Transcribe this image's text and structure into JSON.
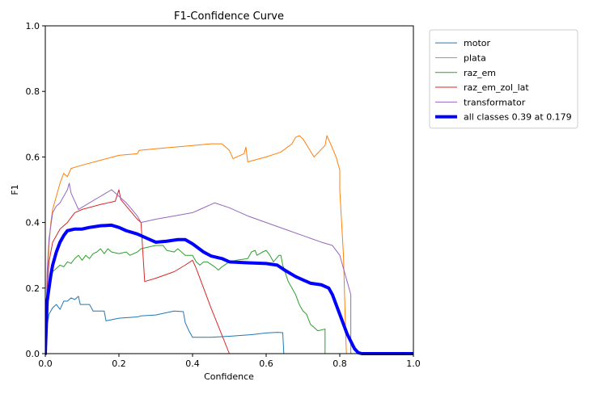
{
  "chart_data": {
    "type": "line",
    "title": "F1-Confidence Curve",
    "xlabel": "Confidence",
    "ylabel": "F1",
    "xlim": [
      0,
      1
    ],
    "ylim": [
      0,
      1
    ],
    "xticks": [
      "0.0",
      "0.2",
      "0.4",
      "0.6",
      "0.8",
      "1.0"
    ],
    "yticks": [
      "0.0",
      "0.2",
      "0.4",
      "0.6",
      "0.8",
      "1.0"
    ],
    "legend_position": "outside-top-right",
    "grid": false,
    "series": [
      {
        "name": "motor",
        "color": "#1f77b4",
        "width": 1,
        "points": [
          [
            0.0,
            0.0
          ],
          [
            0.004,
            0.08
          ],
          [
            0.01,
            0.12
          ],
          [
            0.02,
            0.14
          ],
          [
            0.03,
            0.15
          ],
          [
            0.04,
            0.135
          ],
          [
            0.05,
            0.16
          ],
          [
            0.06,
            0.16
          ],
          [
            0.07,
            0.17
          ],
          [
            0.08,
            0.165
          ],
          [
            0.09,
            0.175
          ],
          [
            0.095,
            0.15
          ],
          [
            0.12,
            0.15
          ],
          [
            0.13,
            0.13
          ],
          [
            0.16,
            0.13
          ],
          [
            0.165,
            0.1
          ],
          [
            0.2,
            0.108
          ],
          [
            0.25,
            0.112
          ],
          [
            0.26,
            0.115
          ],
          [
            0.3,
            0.118
          ],
          [
            0.35,
            0.13
          ],
          [
            0.375,
            0.128
          ],
          [
            0.38,
            0.095
          ],
          [
            0.39,
            0.07
          ],
          [
            0.4,
            0.05
          ],
          [
            0.45,
            0.05
          ],
          [
            0.5,
            0.053
          ],
          [
            0.56,
            0.058
          ],
          [
            0.6,
            0.063
          ],
          [
            0.63,
            0.065
          ],
          [
            0.645,
            0.064
          ],
          [
            0.648,
            0.0
          ]
        ]
      },
      {
        "name": "plata",
        "color": "#ff7f0e",
        "width": 1,
        "points": [
          [
            0.0,
            0.0
          ],
          [
            0.005,
            0.2
          ],
          [
            0.01,
            0.33
          ],
          [
            0.015,
            0.4
          ],
          [
            0.02,
            0.44
          ],
          [
            0.03,
            0.48
          ],
          [
            0.04,
            0.52
          ],
          [
            0.05,
            0.55
          ],
          [
            0.06,
            0.54
          ],
          [
            0.07,
            0.565
          ],
          [
            0.1,
            0.575
          ],
          [
            0.15,
            0.59
          ],
          [
            0.2,
            0.605
          ],
          [
            0.25,
            0.61
          ],
          [
            0.255,
            0.62
          ],
          [
            0.3,
            0.625
          ],
          [
            0.35,
            0.63
          ],
          [
            0.4,
            0.635
          ],
          [
            0.45,
            0.64
          ],
          [
            0.48,
            0.64
          ],
          [
            0.5,
            0.62
          ],
          [
            0.51,
            0.595
          ],
          [
            0.54,
            0.61
          ],
          [
            0.545,
            0.63
          ],
          [
            0.55,
            0.585
          ],
          [
            0.6,
            0.6
          ],
          [
            0.64,
            0.615
          ],
          [
            0.67,
            0.64
          ],
          [
            0.68,
            0.66
          ],
          [
            0.69,
            0.665
          ],
          [
            0.7,
            0.655
          ],
          [
            0.73,
            0.6
          ],
          [
            0.76,
            0.635
          ],
          [
            0.765,
            0.665
          ],
          [
            0.775,
            0.64
          ],
          [
            0.79,
            0.6
          ],
          [
            0.8,
            0.56
          ],
          [
            0.8,
            0.5
          ],
          [
            0.81,
            0.3
          ],
          [
            0.815,
            0.1
          ],
          [
            0.818,
            0.0
          ]
        ]
      },
      {
        "name": "raz_em",
        "color": "#2ca02c",
        "width": 1,
        "points": [
          [
            0.0,
            0.0
          ],
          [
            0.005,
            0.15
          ],
          [
            0.01,
            0.2
          ],
          [
            0.015,
            0.22
          ],
          [
            0.02,
            0.25
          ],
          [
            0.03,
            0.26
          ],
          [
            0.04,
            0.27
          ],
          [
            0.05,
            0.265
          ],
          [
            0.06,
            0.28
          ],
          [
            0.07,
            0.275
          ],
          [
            0.08,
            0.29
          ],
          [
            0.09,
            0.3
          ],
          [
            0.1,
            0.285
          ],
          [
            0.11,
            0.3
          ],
          [
            0.12,
            0.29
          ],
          [
            0.13,
            0.305
          ],
          [
            0.14,
            0.31
          ],
          [
            0.15,
            0.32
          ],
          [
            0.16,
            0.305
          ],
          [
            0.17,
            0.32
          ],
          [
            0.18,
            0.31
          ],
          [
            0.2,
            0.305
          ],
          [
            0.22,
            0.31
          ],
          [
            0.23,
            0.3
          ],
          [
            0.25,
            0.31
          ],
          [
            0.26,
            0.32
          ],
          [
            0.28,
            0.325
          ],
          [
            0.3,
            0.33
          ],
          [
            0.32,
            0.33
          ],
          [
            0.33,
            0.315
          ],
          [
            0.35,
            0.31
          ],
          [
            0.36,
            0.32
          ],
          [
            0.37,
            0.31
          ],
          [
            0.38,
            0.3
          ],
          [
            0.4,
            0.3
          ],
          [
            0.41,
            0.28
          ],
          [
            0.42,
            0.27
          ],
          [
            0.43,
            0.28
          ],
          [
            0.44,
            0.28
          ],
          [
            0.46,
            0.265
          ],
          [
            0.47,
            0.255
          ],
          [
            0.48,
            0.265
          ],
          [
            0.5,
            0.28
          ],
          [
            0.52,
            0.285
          ],
          [
            0.55,
            0.29
          ],
          [
            0.56,
            0.31
          ],
          [
            0.57,
            0.315
          ],
          [
            0.575,
            0.3
          ],
          [
            0.59,
            0.31
          ],
          [
            0.6,
            0.315
          ],
          [
            0.61,
            0.3
          ],
          [
            0.62,
            0.28
          ],
          [
            0.635,
            0.3
          ],
          [
            0.64,
            0.3
          ],
          [
            0.645,
            0.27
          ],
          [
            0.66,
            0.22
          ],
          [
            0.67,
            0.2
          ],
          [
            0.68,
            0.18
          ],
          [
            0.69,
            0.15
          ],
          [
            0.7,
            0.13
          ],
          [
            0.71,
            0.12
          ],
          [
            0.72,
            0.09
          ],
          [
            0.73,
            0.08
          ],
          [
            0.74,
            0.07
          ],
          [
            0.75,
            0.072
          ],
          [
            0.76,
            0.075
          ],
          [
            0.76,
            0.0
          ]
        ]
      },
      {
        "name": "raz_em_zol_lat",
        "color": "#d62728",
        "width": 1,
        "points": [
          [
            0.0,
            0.0
          ],
          [
            0.005,
            0.2
          ],
          [
            0.01,
            0.28
          ],
          [
            0.02,
            0.34
          ],
          [
            0.03,
            0.36
          ],
          [
            0.04,
            0.38
          ],
          [
            0.05,
            0.39
          ],
          [
            0.06,
            0.4
          ],
          [
            0.08,
            0.43
          ],
          [
            0.1,
            0.44
          ],
          [
            0.15,
            0.455
          ],
          [
            0.19,
            0.465
          ],
          [
            0.2,
            0.5
          ],
          [
            0.205,
            0.47
          ],
          [
            0.22,
            0.45
          ],
          [
            0.25,
            0.41
          ],
          [
            0.26,
            0.4
          ],
          [
            0.27,
            0.22
          ],
          [
            0.3,
            0.23
          ],
          [
            0.35,
            0.25
          ],
          [
            0.38,
            0.27
          ],
          [
            0.4,
            0.285
          ],
          [
            0.41,
            0.26
          ],
          [
            0.45,
            0.14
          ],
          [
            0.5,
            0.0
          ]
        ]
      },
      {
        "name": "transformator",
        "color": "#9467bd",
        "width": 1,
        "points": [
          [
            0.0,
            0.0
          ],
          [
            0.005,
            0.25
          ],
          [
            0.01,
            0.35
          ],
          [
            0.02,
            0.43
          ],
          [
            0.03,
            0.45
          ],
          [
            0.04,
            0.46
          ],
          [
            0.05,
            0.48
          ],
          [
            0.06,
            0.5
          ],
          [
            0.065,
            0.52
          ],
          [
            0.07,
            0.49
          ],
          [
            0.09,
            0.44
          ],
          [
            0.12,
            0.46
          ],
          [
            0.15,
            0.48
          ],
          [
            0.18,
            0.5
          ],
          [
            0.2,
            0.48
          ],
          [
            0.22,
            0.46
          ],
          [
            0.25,
            0.42
          ],
          [
            0.26,
            0.4
          ],
          [
            0.3,
            0.41
          ],
          [
            0.35,
            0.42
          ],
          [
            0.4,
            0.43
          ],
          [
            0.42,
            0.44
          ],
          [
            0.45,
            0.455
          ],
          [
            0.46,
            0.46
          ],
          [
            0.5,
            0.445
          ],
          [
            0.55,
            0.42
          ],
          [
            0.6,
            0.4
          ],
          [
            0.65,
            0.38
          ],
          [
            0.7,
            0.36
          ],
          [
            0.75,
            0.34
          ],
          [
            0.78,
            0.33
          ],
          [
            0.8,
            0.3
          ],
          [
            0.82,
            0.22
          ],
          [
            0.83,
            0.18
          ],
          [
            0.83,
            0.0
          ]
        ]
      },
      {
        "name": "all classes 0.39 at 0.179",
        "color": "#0000ff",
        "width": 4,
        "points": [
          [
            0.0,
            0.0
          ],
          [
            0.005,
            0.16
          ],
          [
            0.01,
            0.2
          ],
          [
            0.015,
            0.24
          ],
          [
            0.02,
            0.27
          ],
          [
            0.03,
            0.31
          ],
          [
            0.04,
            0.34
          ],
          [
            0.05,
            0.36
          ],
          [
            0.06,
            0.375
          ],
          [
            0.08,
            0.38
          ],
          [
            0.1,
            0.38
          ],
          [
            0.12,
            0.385
          ],
          [
            0.15,
            0.39
          ],
          [
            0.179,
            0.392
          ],
          [
            0.2,
            0.385
          ],
          [
            0.22,
            0.375
          ],
          [
            0.25,
            0.365
          ],
          [
            0.28,
            0.35
          ],
          [
            0.3,
            0.34
          ],
          [
            0.33,
            0.343
          ],
          [
            0.36,
            0.348
          ],
          [
            0.38,
            0.348
          ],
          [
            0.4,
            0.335
          ],
          [
            0.43,
            0.31
          ],
          [
            0.45,
            0.298
          ],
          [
            0.48,
            0.29
          ],
          [
            0.5,
            0.28
          ],
          [
            0.55,
            0.277
          ],
          [
            0.6,
            0.275
          ],
          [
            0.63,
            0.27
          ],
          [
            0.65,
            0.255
          ],
          [
            0.68,
            0.235
          ],
          [
            0.7,
            0.225
          ],
          [
            0.72,
            0.215
          ],
          [
            0.75,
            0.21
          ],
          [
            0.77,
            0.2
          ],
          [
            0.78,
            0.18
          ],
          [
            0.8,
            0.12
          ],
          [
            0.82,
            0.06
          ],
          [
            0.84,
            0.015
          ],
          [
            0.85,
            0.003
          ],
          [
            0.86,
            0.0
          ],
          [
            1.0,
            0.0
          ]
        ]
      }
    ]
  }
}
